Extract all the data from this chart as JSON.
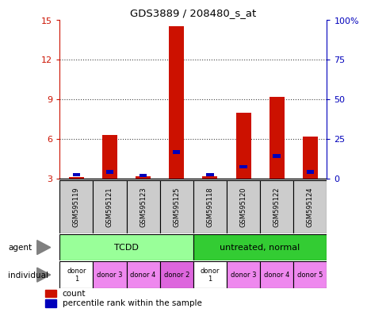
{
  "title": "GDS3889 / 208480_s_at",
  "samples": [
    "GSM595119",
    "GSM595121",
    "GSM595123",
    "GSM595125",
    "GSM595118",
    "GSM595120",
    "GSM595122",
    "GSM595124"
  ],
  "red_bars_top": [
    3.1,
    6.3,
    3.15,
    14.5,
    3.15,
    8.0,
    9.2,
    6.2
  ],
  "blue_marks_y": [
    3.3,
    3.5,
    3.25,
    5.0,
    3.3,
    3.9,
    4.7,
    3.5
  ],
  "red_bar_bottom": 3.0,
  "ylim_left": [
    3,
    15
  ],
  "yticks_left": [
    3,
    6,
    9,
    12,
    15
  ],
  "yticks_right_vals": [
    0,
    25,
    50,
    75,
    100
  ],
  "yticks_right_labels": [
    "0",
    "25",
    "50",
    "75",
    "100%"
  ],
  "agent_labels": [
    "TCDD",
    "untreated, normal"
  ],
  "agent_colors": [
    "#99ff99",
    "#33cc33"
  ],
  "individual_labels": [
    "donor\n1",
    "donor 3",
    "donor 4",
    "donor 2",
    "donor\n1",
    "donor 3",
    "donor 4",
    "donor 5"
  ],
  "individual_colors": [
    "#ffffff",
    "#ee88ee",
    "#ee88ee",
    "#dd66dd",
    "#ffffff",
    "#ee88ee",
    "#ee88ee",
    "#ee88ee"
  ],
  "bar_color": "#cc1100",
  "blue_color": "#0000bb",
  "grid_color": "#444444",
  "axis_color_left": "#cc1100",
  "axis_color_right": "#0000bb",
  "sample_box_color": "#cccccc",
  "legend_items": [
    "count",
    "percentile rank within the sample"
  ],
  "bar_width": 0.45
}
